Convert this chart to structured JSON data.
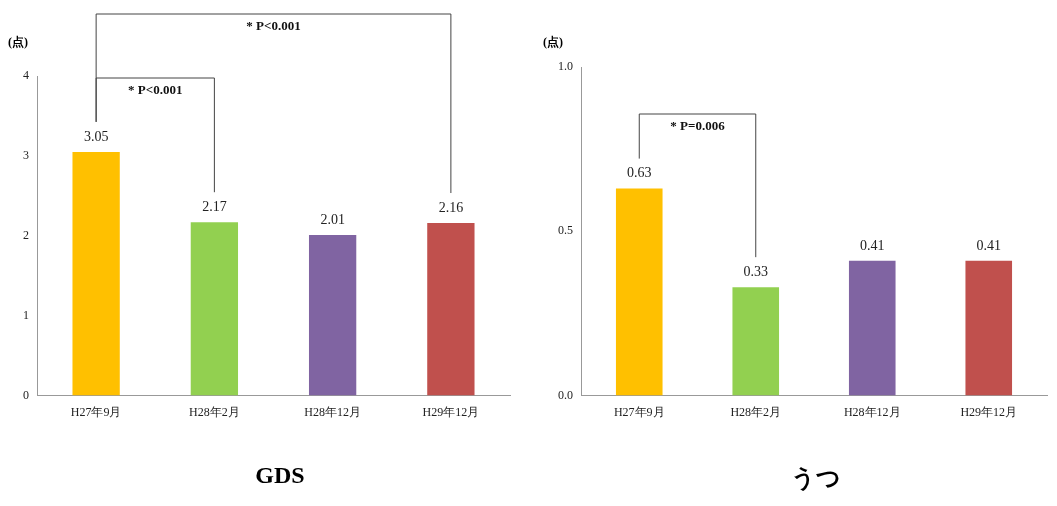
{
  "chart_data": [
    {
      "type": "bar",
      "title": "GDS",
      "ylabel": "(点)",
      "categories": [
        "H27年9月",
        "H28年2月",
        "H28年12月",
        "H29年12月"
      ],
      "values": [
        3.05,
        2.17,
        2.01,
        2.16
      ],
      "colors": [
        "#ffc000",
        "#92d050",
        "#8064a2",
        "#c0504d"
      ],
      "ylim": [
        0,
        4
      ],
      "yticks": [
        0,
        1,
        2,
        3,
        4
      ],
      "grid": false,
      "legend": false,
      "data_labels": true,
      "annotations": [
        "* P<0.001",
        "* P<0.001"
      ]
    },
    {
      "type": "bar",
      "title": "うつ",
      "ylabel": "(点)",
      "categories": [
        "H27年9月",
        "H28年2月",
        "H28年12月",
        "H29年12月"
      ],
      "values": [
        0.63,
        0.33,
        0.41,
        0.41
      ],
      "colors": [
        "#ffc000",
        "#92d050",
        "#8064a2",
        "#c0504d"
      ],
      "ylim": [
        0,
        1
      ],
      "yticks": [
        {
          "value": 0,
          "label": "0.0"
        },
        {
          "value": 0.5,
          "label": "0.5"
        },
        {
          "value": 1,
          "label": "1.0"
        }
      ],
      "grid": false,
      "legend": false,
      "data_labels": true,
      "annotations": [
        "* P=0.006"
      ]
    }
  ]
}
